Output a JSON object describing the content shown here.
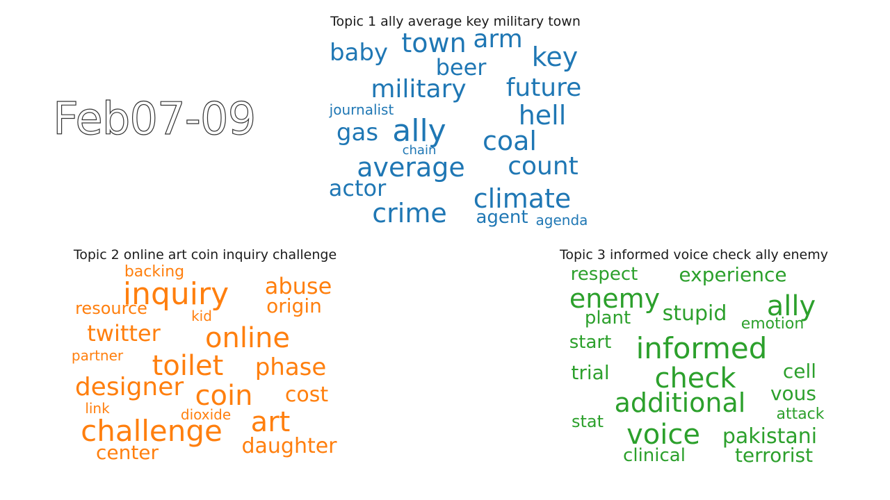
{
  "date_label": "Feb07-09",
  "topics": [
    {
      "title": "Topic 1 ally average key military town",
      "color": "#1f77b4",
      "words": [
        "town",
        "arm",
        "baby",
        "key",
        "beer",
        "military",
        "future",
        "hell",
        "journalist",
        "gas",
        "ally",
        "coal",
        "chain",
        "average",
        "count",
        "actor",
        "climate",
        "crime",
        "agent",
        "agenda"
      ]
    },
    {
      "title": "Topic 2 online art coin inquiry challenge",
      "color": "#ff7f0e",
      "words": [
        "backing",
        "inquiry",
        "abuse",
        "resource",
        "origin",
        "kid",
        "twitter",
        "online",
        "partner",
        "toilet",
        "phase",
        "designer",
        "coin",
        "cost",
        "link",
        "dioxide",
        "art",
        "challenge",
        "center",
        "daughter"
      ]
    },
    {
      "title": "Topic 3 informed voice check ally enemy",
      "color": "#2ca02c",
      "words": [
        "respect",
        "experience",
        "enemy",
        "ally",
        "plant",
        "stupid",
        "emotion",
        "start",
        "informed",
        "trial",
        "cell",
        "check",
        "vous",
        "additional",
        "attack",
        "stat",
        "voice",
        "pakistani",
        "clinical",
        "terrorist"
      ]
    }
  ]
}
